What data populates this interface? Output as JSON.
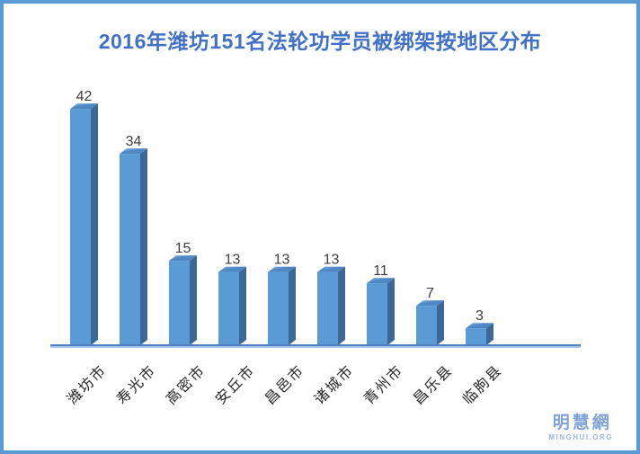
{
  "title": "2016年潍坊151名法轮功学员被绑架按地区分布",
  "watermark": {
    "name": "明慧網",
    "site": "MINGHUI.ORG"
  },
  "colors": {
    "frame": "#5b9bd5",
    "title": "#4171c6",
    "bar_front": "#5b9bd5",
    "bar_top": "#4d88c4",
    "bar_top_highlight": "#8ab6e2",
    "bar_side": "#3c6897",
    "axis_dark": "#4f7fc1",
    "axis_light": "#a9c6e8",
    "value_label": "#3d3d3d",
    "category_label": "#262626",
    "watermark_name": "#7fa3d6",
    "watermark_site": "#9ab5de"
  },
  "chart_data": {
    "type": "bar",
    "title": "2016年潍坊151名法轮功学员被绑架按地区分布",
    "categories": [
      "潍坊市",
      "寿光市",
      "高密市",
      "安丘市",
      "昌邑市",
      "诸城市",
      "青州市",
      "昌乐县",
      "临朐县"
    ],
    "values": [
      42,
      34,
      15,
      13,
      13,
      13,
      11,
      7,
      3
    ],
    "xlabel": "",
    "ylabel": "",
    "ylim": [
      0,
      45
    ],
    "grid": false,
    "legend": "none",
    "data_labels": true,
    "bar_style": "3d",
    "total_mentioned_in_title": 151
  }
}
